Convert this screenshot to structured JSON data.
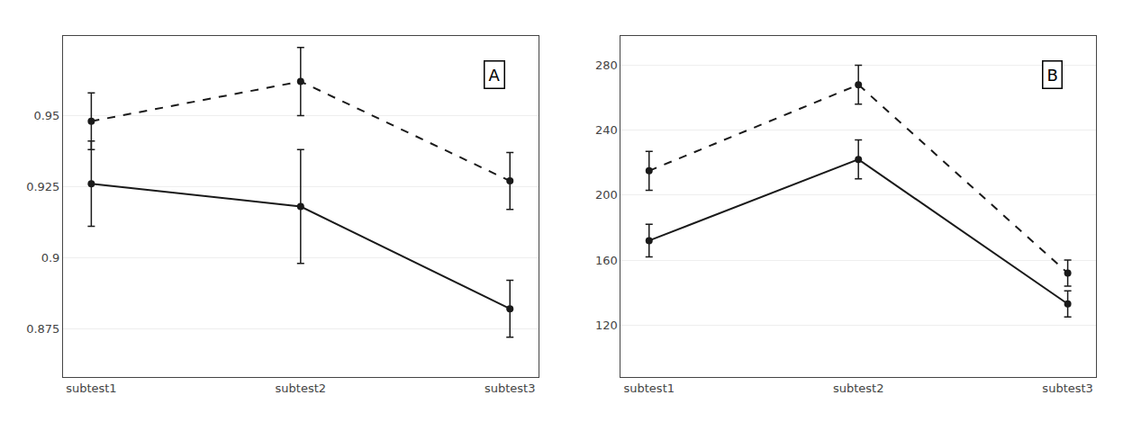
{
  "chart_data": [
    {
      "type": "line",
      "categories": [
        "subtest1",
        "subtest2",
        "subtest3"
      ],
      "series": [
        {
          "color": "#1a1a1a",
          "line_style": "solid",
          "marker": "circle",
          "values": [
            0.926,
            0.918,
            0.882
          ],
          "errors": [
            0.015,
            0.02,
            0.01
          ]
        },
        {
          "color": "#1a1a1a",
          "line_style": "dashed",
          "marker": "circle",
          "values": [
            0.948,
            0.962,
            0.927
          ],
          "errors": [
            0.01,
            0.012,
            0.01
          ]
        }
      ],
      "ylim": [
        0.858,
        0.978
      ],
      "yticks": [
        0.875,
        0.9,
        0.925,
        0.95
      ],
      "grid": true,
      "annotations": [
        "A"
      ]
    },
    {
      "type": "line",
      "categories": [
        "subtest1",
        "subtest2",
        "subtest3"
      ],
      "series": [
        {
          "color": "#1a1a1a",
          "line_style": "solid",
          "marker": "circle",
          "values": [
            172,
            222,
            133
          ],
          "errors": [
            10,
            12,
            8
          ]
        },
        {
          "color": "#1a1a1a",
          "line_style": "dashed",
          "marker": "circle",
          "values": [
            215,
            268,
            152
          ],
          "errors": [
            12,
            12,
            8
          ]
        }
      ],
      "ylim": [
        88,
        298
      ],
      "yticks": [
        120,
        160,
        200,
        240,
        280
      ],
      "grid": true,
      "annotations": [
        "B"
      ]
    }
  ]
}
